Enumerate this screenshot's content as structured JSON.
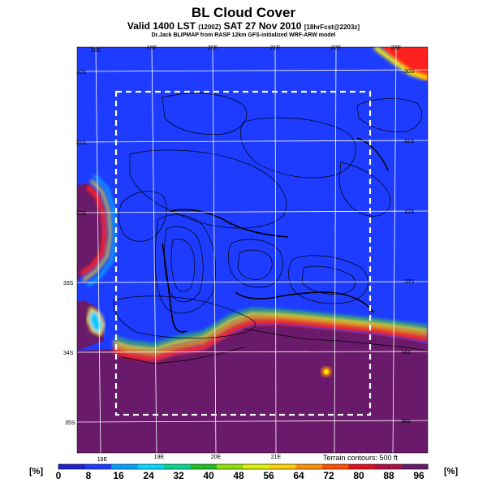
{
  "header": {
    "title": "BL Cloud Cover",
    "valid_prefix": "Valid 1400 LST",
    "valid_code": "(1200Z)",
    "valid_date": "SAT 27 Nov 2010",
    "valid_fcst": "[18hrFcst@2203z]",
    "credit": "Dr.Jack BLIPMAP from RASP 12km GFS-initialized WRF-ARW model"
  },
  "map": {
    "top_lon_labels": [
      "18E",
      "19E",
      "20E",
      "21E",
      "22E",
      "23E"
    ],
    "bottom_lon_labels": [
      "18E",
      "19E",
      "20E",
      "21E"
    ],
    "left_lat_labels": [
      "30S",
      "31S",
      "32S",
      "33S",
      "34S",
      "35S"
    ],
    "right_lat_labels": [
      "30S",
      "31S",
      "32S",
      "33S",
      "34S",
      "35S"
    ],
    "terrain_note": "Terrain contours: 500 ft",
    "colors": {
      "clear": "#1e3cff",
      "ocean_overcast": "#6a1a6a",
      "red": "#ff2020",
      "orange": "#ff8c00",
      "yellow": "#ffee00",
      "green": "#33cc44",
      "cyan": "#00c8ff",
      "box": "#ffffff"
    }
  },
  "colorbar": {
    "unit_left": "[%]",
    "unit_right": "[%]",
    "ticks": [
      "0",
      "8",
      "16",
      "24",
      "32",
      "40",
      "48",
      "56",
      "64",
      "72",
      "80",
      "88",
      "96"
    ],
    "colors": [
      "#2020d0",
      "#1e3cff",
      "#00a0ff",
      "#00d8ff",
      "#00d890",
      "#20c020",
      "#90e000",
      "#e0f000",
      "#ffd000",
      "#ff9000",
      "#ff5000",
      "#e01020",
      "#b01040",
      "#6a1a6a"
    ]
  }
}
